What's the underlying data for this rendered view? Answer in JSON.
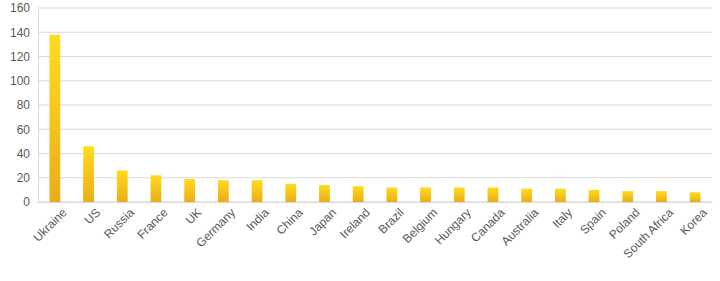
{
  "chart_data": {
    "type": "bar",
    "categories": [
      "Ukraine",
      "US",
      "Russia",
      "France",
      "UK",
      "Germany",
      "India",
      "China",
      "Japan",
      "Ireland",
      "Brazil",
      "Belgium",
      "Hungary",
      "Canada",
      "Australia",
      "Italy",
      "Spain",
      "Poland",
      "South Africa",
      "Korea"
    ],
    "values": [
      138,
      46,
      26,
      22,
      19,
      18,
      18,
      15,
      14,
      13,
      12,
      12,
      12,
      12,
      11,
      11,
      10,
      9,
      9,
      8
    ],
    "color": "#f7b719",
    "ylim": [
      0,
      160
    ],
    "yticks": [
      0,
      20,
      40,
      60,
      80,
      100,
      120,
      140,
      160
    ],
    "grid": true
  }
}
